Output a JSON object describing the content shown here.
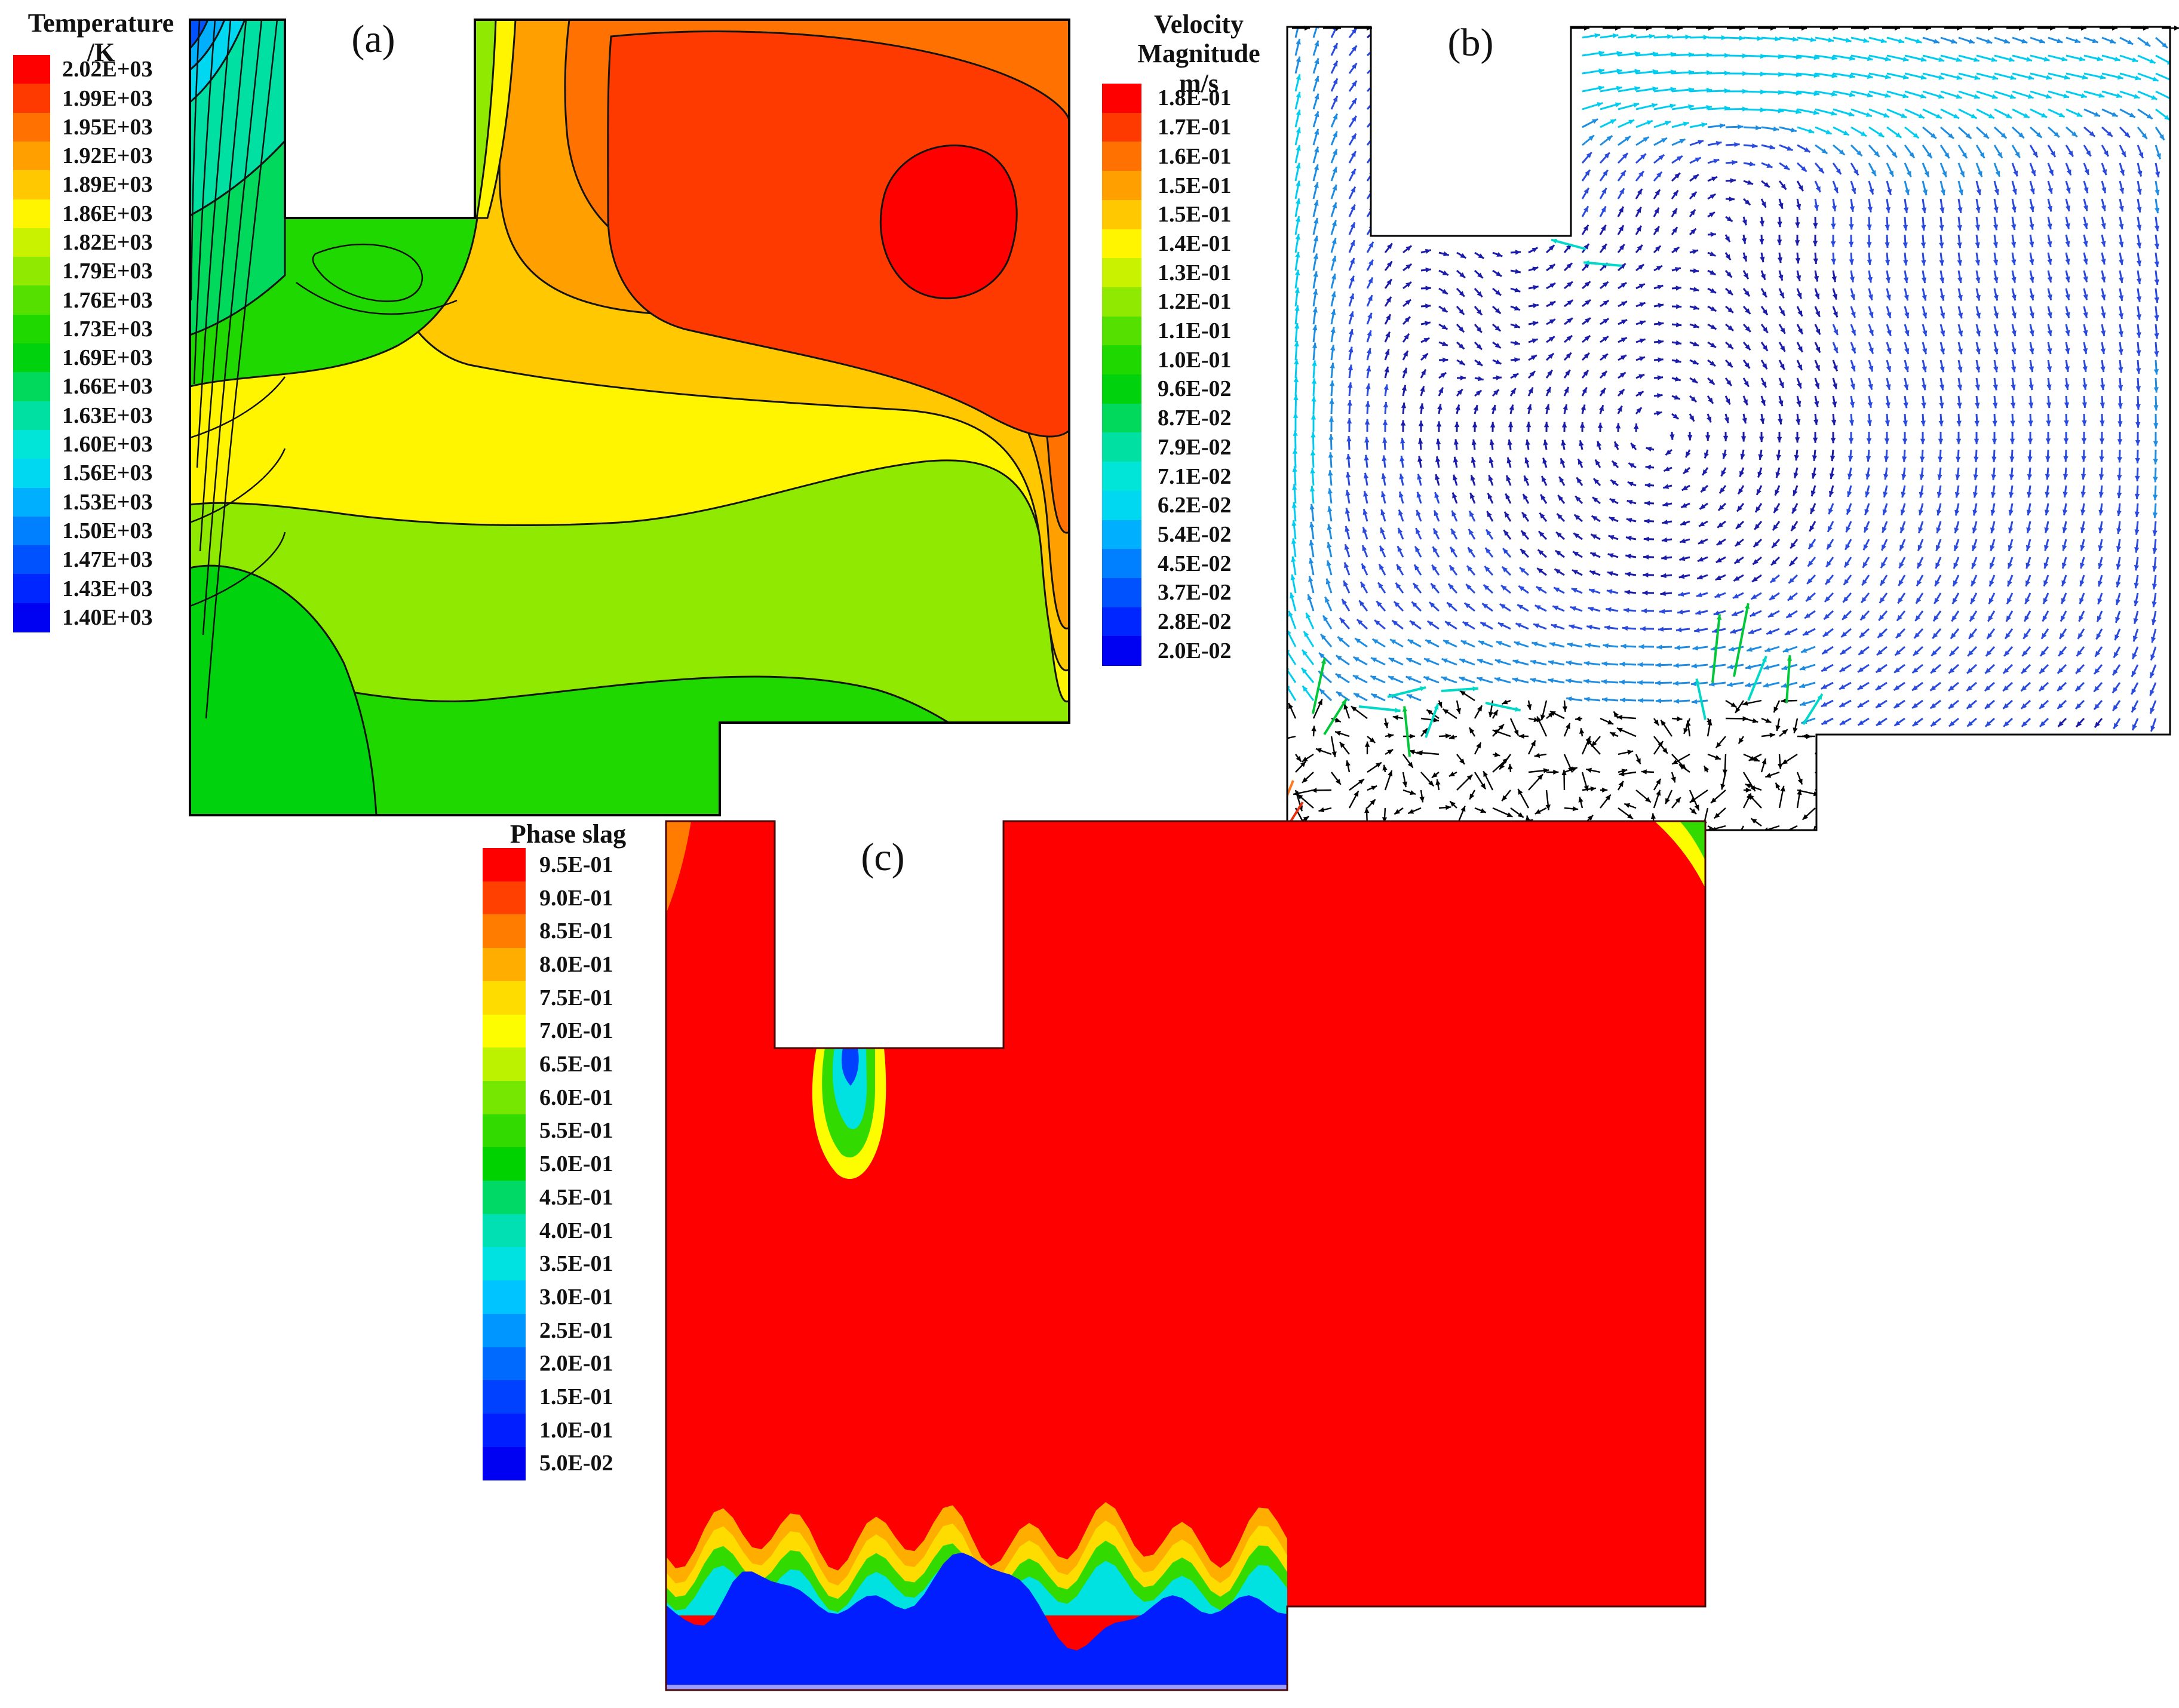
{
  "background": "#ffffff",
  "chart_data": {
    "type": "multi-panel-cfd-figure",
    "panels": [
      {
        "id": "a",
        "label": "(a)",
        "plot_type": "filled-contour",
        "legend_title": [
          "Temperature",
          "/K"
        ],
        "levels": [
          "2.02E+03",
          "1.99E+03",
          "1.95E+03",
          "1.92E+03",
          "1.89E+03",
          "1.86E+03",
          "1.82E+03",
          "1.79E+03",
          "1.76E+03",
          "1.73E+03",
          "1.69E+03",
          "1.66E+03",
          "1.63E+03",
          "1.60E+03",
          "1.56E+03",
          "1.53E+03",
          "1.50E+03",
          "1.47E+03",
          "1.43E+03",
          "1.40E+03"
        ],
        "colors": [
          "#ff0000",
          "#ff3a00",
          "#ff7100",
          "#ffa000",
          "#ffc800",
          "#fff500",
          "#c8f200",
          "#8fe900",
          "#55e000",
          "#1ed800",
          "#00d30e",
          "#00d95c",
          "#00e0a2",
          "#00e5d8",
          "#00d8f2",
          "#00b0ff",
          "#0080ff",
          "#0052ff",
          "#0026ff",
          "#0000f2"
        ],
        "description": "Temperature contour of furnace cross-section: hot orange/red zone (~1.95-2.02E+03 K) fills the upper right with a red core near the right wall, stratified yellow and yellow-green bands across the middle, dominant green (~1.76-1.79E+03 K) lower half, and cool cyan-to-blue gradient (~1.40-1.60E+03 K) pinched into the top-left corner."
      },
      {
        "id": "b",
        "label": "(b)",
        "plot_type": "vector-field",
        "legend_title": [
          "Velocity",
          "Magnitude",
          "m/s"
        ],
        "levels": [
          "1.8E-01",
          "1.7E-01",
          "1.6E-01",
          "1.5E-01",
          "1.5E-01",
          "1.4E-01",
          "1.3E-01",
          "1.2E-01",
          "1.1E-01",
          "1.0E-01",
          "9.6E-02",
          "8.7E-02",
          "7.9E-02",
          "7.1E-02",
          "6.2E-02",
          "5.4E-02",
          "4.5E-02",
          "3.7E-02",
          "2.8E-02",
          "2.0E-02"
        ],
        "colors": [
          "#ff0000",
          "#ff3a00",
          "#ff7100",
          "#ffa000",
          "#ffc800",
          "#fff500",
          "#c8f200",
          "#8fe900",
          "#55e000",
          "#1ed800",
          "#00d30e",
          "#00d95c",
          "#00e0a2",
          "#00e5d8",
          "#00d8f2",
          "#00b0ff",
          "#0080ff",
          "#0052ff",
          "#0026ff",
          "#0000f2"
        ],
        "arrow_palette": {
          "slow": "#1c1caa",
          "medium": "#2a4ade",
          "fast": "#1e8ce0",
          "fastest": "#00ccf0",
          "boundary": "#000000",
          "slag": "#000000",
          "spike_green": "#00c838",
          "spike_cyan": "#00d8c8",
          "spike_orange": "#ff7a1e",
          "spike_red": "#e83010"
        },
        "flow_features": [
          "black inlet arrows pointing right along the top boundary",
          "fast cyan stream along the upper wall and down the left shaft",
          "large clockwise recirculation cell filling the main chamber",
          "elongated clockwise eddy under the top wall",
          "downward jet issuing from the electrode notch",
          "chaotic black arrows in the slag pool at the bottom left",
          "green and cyan velocity spikes at the slag interface",
          "orange/red arrows at the lower-left corner"
        ]
      },
      {
        "id": "c",
        "label": "(c)",
        "plot_type": "filled-contour",
        "legend_title": [
          "Phase slag"
        ],
        "levels": [
          "9.5E-01",
          "9.0E-01",
          "8.5E-01",
          "8.0E-01",
          "7.5E-01",
          "7.0E-01",
          "6.5E-01",
          "6.0E-01",
          "5.5E-01",
          "5.0E-01",
          "4.5E-01",
          "4.0E-01",
          "3.5E-01",
          "3.0E-01",
          "2.5E-01",
          "2.0E-01",
          "1.5E-01",
          "1.0E-01",
          "5.0E-02"
        ],
        "colors": [
          "#ff0000",
          "#ff4000",
          "#ff7c00",
          "#ffae00",
          "#ffdc00",
          "#fdfd00",
          "#bcf200",
          "#76e700",
          "#32da00",
          "#00d200",
          "#00d966",
          "#00e0b2",
          "#00e2e2",
          "#00c4ff",
          "#0096ff",
          "#006aff",
          "#0040ff",
          "#001eff",
          "#0000f2"
        ],
        "description": "Slag phase fraction: red (~1.0) fills almost the whole chamber; a blue/cyan/green plume of low slag fraction hangs below the electrode notch; a wavy rainbow interface (orange-yellow-green-cyan) separates the red melt from the blue slag pool (~0.05) along the bottom-left; small yellow-green patches at the top corners."
      }
    ]
  }
}
